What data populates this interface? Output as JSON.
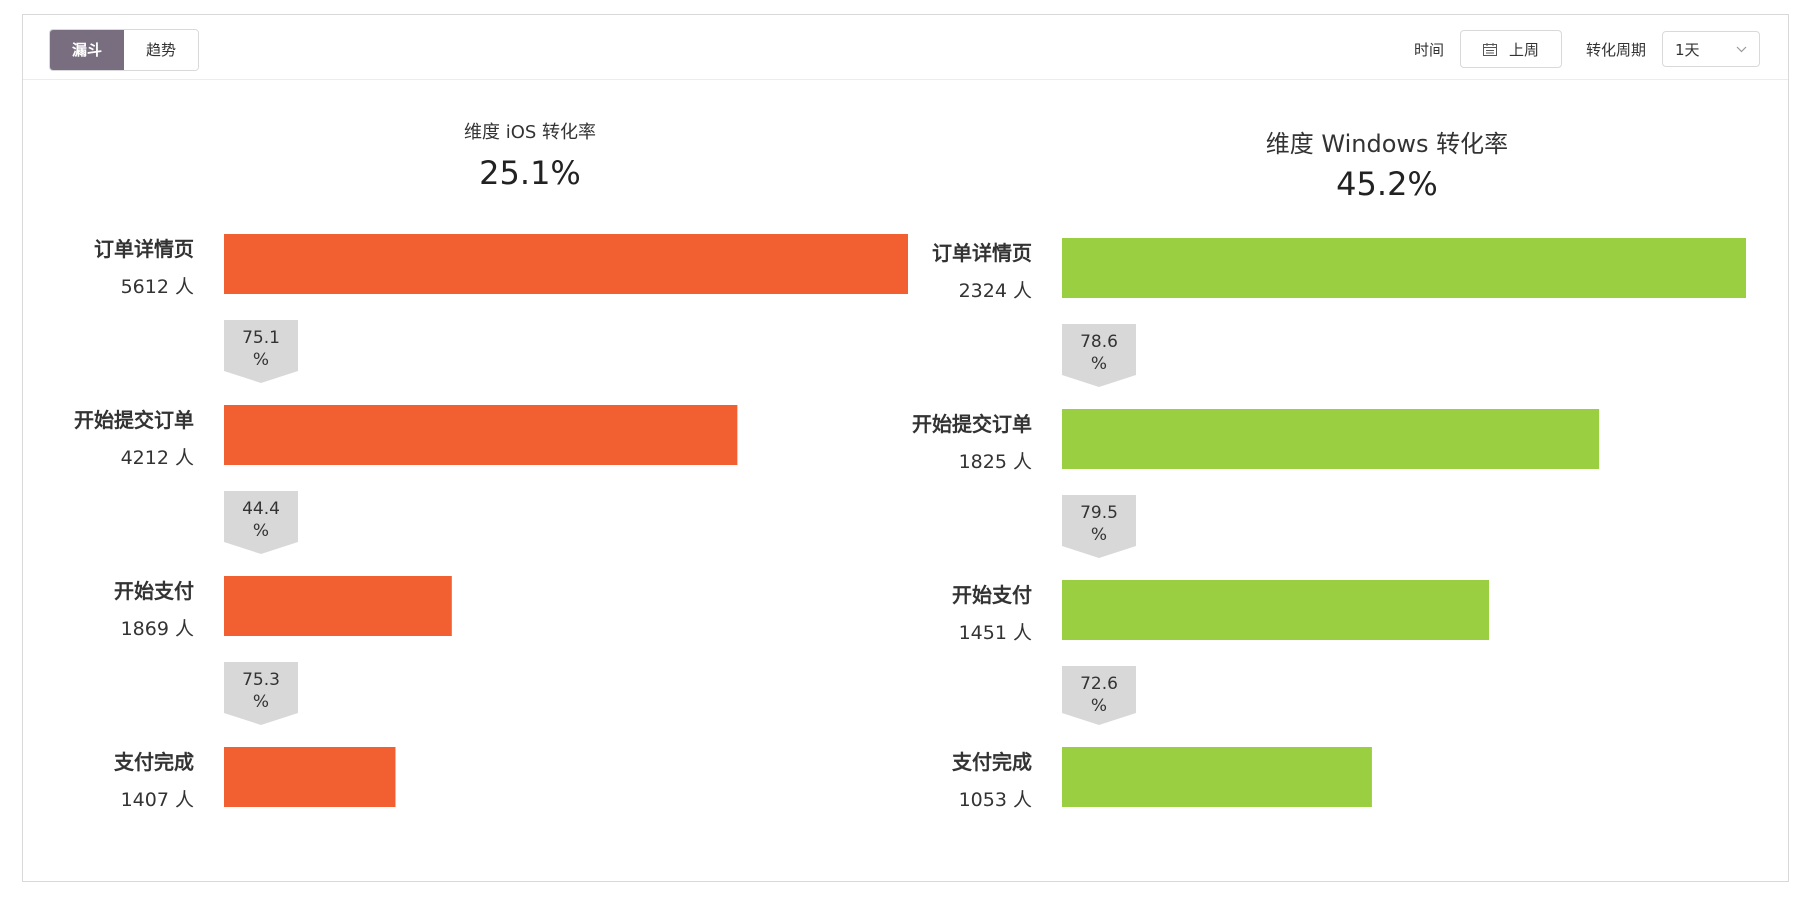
{
  "toolbar": {
    "tabs": [
      {
        "label": "漏斗",
        "active": true
      },
      {
        "label": "趋势",
        "active": false
      }
    ],
    "time_label": "时间",
    "date_value": "上周",
    "period_label": "转化周期",
    "period_value": "1天",
    "icons": {
      "date": "calendar-icon",
      "period": "chevron-down-icon"
    }
  },
  "chart_data": [
    {
      "type": "bar",
      "subtitle": "维度 iOS 转化率",
      "overall_rate": "25.1%",
      "color": "#f26031",
      "steps": [
        "订单详情页",
        "开始提交订单",
        "开始支付",
        "支付完成"
      ],
      "values": [
        5612,
        4212,
        1869,
        1407
      ],
      "value_labels": [
        "5612 人",
        "4212 人",
        "1869 人",
        "1407 人"
      ],
      "conversion_rates": [
        75.1,
        44.4,
        75.3
      ]
    },
    {
      "type": "bar",
      "subtitle": "维度 Windows 转化率",
      "overall_rate": "45.2%",
      "color": "#99cf41",
      "steps": [
        "订单详情页",
        "开始提交订单",
        "开始支付",
        "支付完成"
      ],
      "values": [
        2324,
        1825,
        1451,
        1053
      ],
      "value_labels": [
        "2324 人",
        "1825 人",
        "1451 人",
        "1053 人"
      ],
      "conversion_rates": [
        78.6,
        79.5,
        72.6
      ]
    }
  ],
  "percent_sign": "%"
}
